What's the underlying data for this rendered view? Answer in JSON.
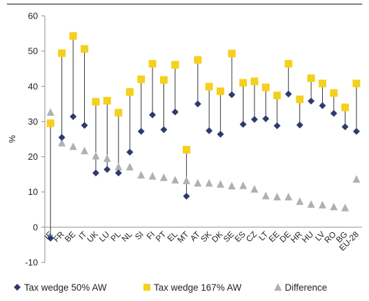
{
  "chart_data": {
    "type": "scatter",
    "ylabel": "%",
    "ylim": [
      -10,
      60
    ],
    "yticks": [
      -10,
      0,
      10,
      20,
      30,
      40,
      50,
      60
    ],
    "grid": false,
    "legend_position": "bottom",
    "categories": [
      "IE",
      "FR",
      "BE",
      "IT",
      "UK",
      "LU",
      "PL",
      "NL",
      "SI",
      "FI",
      "PT",
      "EL",
      "MT",
      "AT",
      "SK",
      "DK",
      "SE",
      "ES",
      "CZ",
      "LT",
      "EE",
      "DE",
      "HR",
      "HU",
      "LV",
      "RO",
      "BG",
      "EU-28"
    ],
    "series": [
      {
        "name": "Tax wedge 50% AW",
        "marker": "diamond",
        "color": "#2e3a6e",
        "values": [
          -3.1,
          25.5,
          31.4,
          28.9,
          15.4,
          16.4,
          15.4,
          21.3,
          27.2,
          31.9,
          27.7,
          32.7,
          8.8,
          35.0,
          27.4,
          26.4,
          37.6,
          29.2,
          30.6,
          30.8,
          28.8,
          37.8,
          29.0,
          35.8,
          34.5,
          32.3,
          28.5,
          27.2
        ]
      },
      {
        "name": "Tax wedge 167% AW",
        "marker": "square",
        "color": "#f5d01c",
        "values": [
          29.5,
          49.4,
          54.3,
          50.6,
          35.6,
          35.9,
          32.5,
          38.4,
          42.0,
          46.4,
          41.8,
          46.1,
          22.0,
          47.5,
          39.9,
          38.6,
          49.3,
          41.0,
          41.4,
          39.7,
          37.4,
          46.4,
          36.3,
          42.3,
          40.8,
          38.1,
          34.0,
          40.8
        ]
      },
      {
        "name": "Difference",
        "marker": "triangle",
        "color": "#b0b0b0",
        "values": [
          32.6,
          23.9,
          22.9,
          21.7,
          20.2,
          19.5,
          17.1,
          17.1,
          14.8,
          14.5,
          14.1,
          13.4,
          13.2,
          12.5,
          12.5,
          12.2,
          11.7,
          11.8,
          10.8,
          8.9,
          8.6,
          8.6,
          7.3,
          6.5,
          6.3,
          5.8,
          5.5,
          13.6
        ]
      }
    ]
  }
}
